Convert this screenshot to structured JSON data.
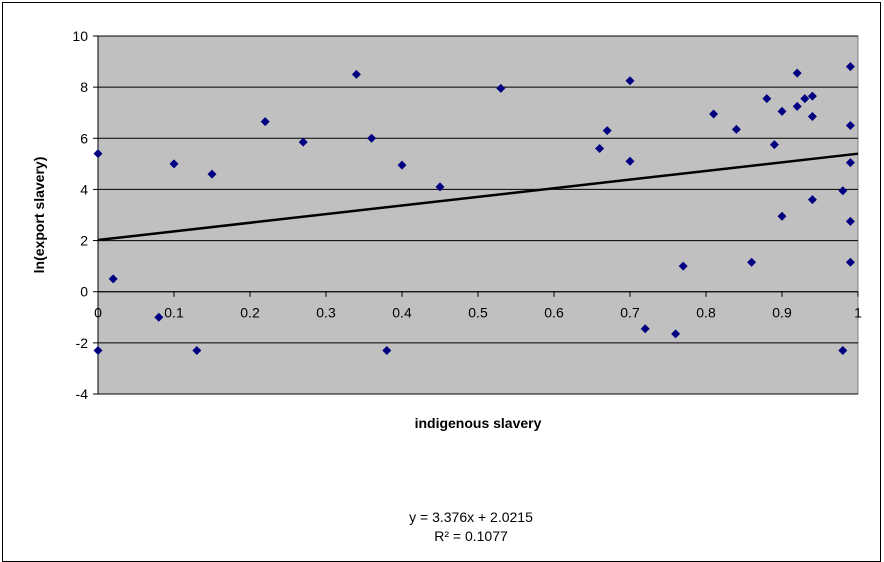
{
  "chart_data": {
    "type": "scatter",
    "xlabel": "indigenous slavery",
    "ylabel": "ln(export slavery)",
    "xlim": [
      0,
      1
    ],
    "ylim": [
      -4,
      10
    ],
    "x_ticks": [
      "0",
      "0.1",
      "0.2",
      "0.3",
      "0.4",
      "0.5",
      "0.6",
      "0.7",
      "0.8",
      "0.9",
      "1"
    ],
    "y_ticks": [
      "10",
      "8",
      "6",
      "4",
      "2",
      "0",
      "-2",
      "-4"
    ],
    "grid": "horizontal major gridlines",
    "legend": "none",
    "plot_background": "#c0c0c0",
    "marker_color": "#000080",
    "series": [
      {
        "marker": "diamond",
        "points": [
          {
            "x": 0.0,
            "y": 5.4
          },
          {
            "x": 0.0,
            "y": -2.3
          },
          {
            "x": 0.02,
            "y": 0.5
          },
          {
            "x": 0.08,
            "y": -1.0
          },
          {
            "x": 0.1,
            "y": 5.0
          },
          {
            "x": 0.13,
            "y": -2.3
          },
          {
            "x": 0.15,
            "y": 4.6
          },
          {
            "x": 0.22,
            "y": 6.65
          },
          {
            "x": 0.27,
            "y": 5.85
          },
          {
            "x": 0.34,
            "y": 8.5
          },
          {
            "x": 0.36,
            "y": 6.0
          },
          {
            "x": 0.38,
            "y": -2.3
          },
          {
            "x": 0.4,
            "y": 4.95
          },
          {
            "x": 0.45,
            "y": 4.1
          },
          {
            "x": 0.53,
            "y": 7.95
          },
          {
            "x": 0.66,
            "y": 5.6
          },
          {
            "x": 0.67,
            "y": 6.3
          },
          {
            "x": 0.7,
            "y": 8.25
          },
          {
            "x": 0.7,
            "y": 5.1
          },
          {
            "x": 0.72,
            "y": -1.45
          },
          {
            "x": 0.76,
            "y": -1.65
          },
          {
            "x": 0.77,
            "y": 1.0
          },
          {
            "x": 0.81,
            "y": 6.95
          },
          {
            "x": 0.84,
            "y": 6.35
          },
          {
            "x": 0.86,
            "y": 1.15
          },
          {
            "x": 0.88,
            "y": 7.55
          },
          {
            "x": 0.89,
            "y": 5.75
          },
          {
            "x": 0.9,
            "y": 7.05
          },
          {
            "x": 0.9,
            "y": 2.95
          },
          {
            "x": 0.92,
            "y": 8.55
          },
          {
            "x": 0.92,
            "y": 7.25
          },
          {
            "x": 0.93,
            "y": 7.55
          },
          {
            "x": 0.94,
            "y": 7.65
          },
          {
            "x": 0.94,
            "y": 6.85
          },
          {
            "x": 0.94,
            "y": 3.6
          },
          {
            "x": 0.98,
            "y": 3.95
          },
          {
            "x": 0.98,
            "y": -2.3
          },
          {
            "x": 0.99,
            "y": 8.8
          },
          {
            "x": 0.99,
            "y": 6.5
          },
          {
            "x": 0.99,
            "y": 5.05
          },
          {
            "x": 0.99,
            "y": 2.75
          },
          {
            "x": 0.99,
            "y": 1.15
          }
        ]
      }
    ],
    "trendline": {
      "type": "linear",
      "slope": 3.376,
      "intercept": 2.0215,
      "color": "#000000",
      "equation": "y = 3.376x + 2.0215",
      "r2_label": "R² = 0.1077"
    }
  }
}
